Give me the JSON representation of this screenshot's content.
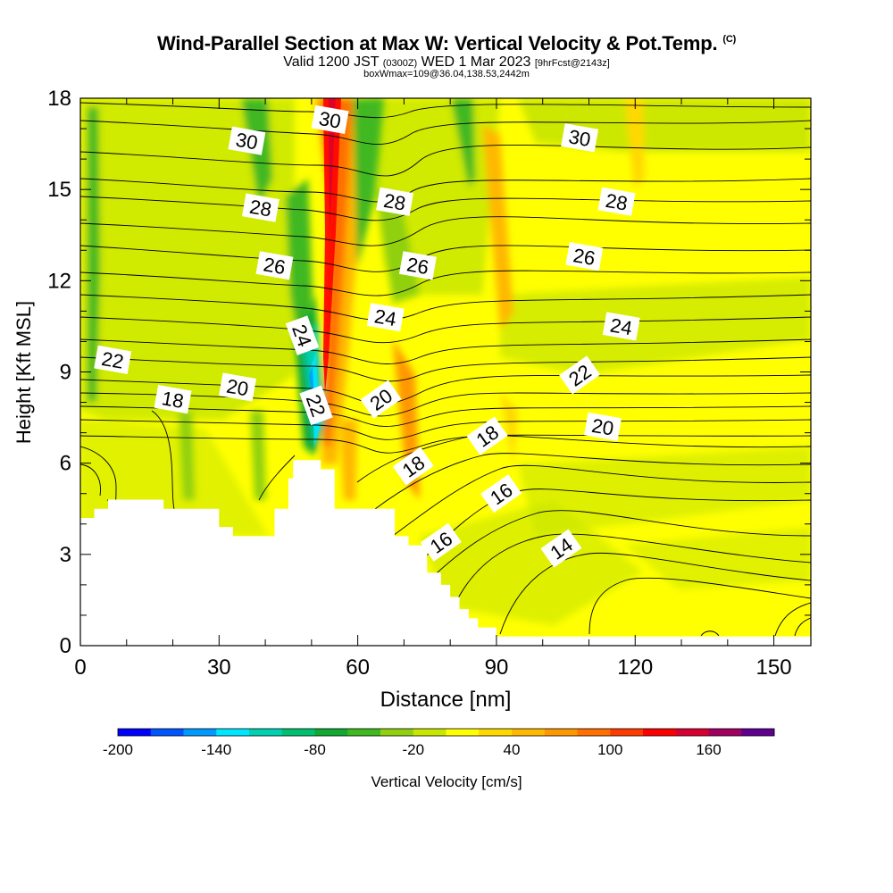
{
  "title": {
    "main": "Wind-Parallel Section at Max W: Vertical Velocity & Pot.Temp.",
    "copyright": "(C)",
    "line2_a": "Valid 1200 JST",
    "line2_b": "(0300Z)",
    "line2_c": "WED 1 Mar 2023",
    "line2_d": "[9hrFcst@2143z]",
    "line3": "boxWmax=109@36.04,138.53,2442m"
  },
  "chart_data": {
    "type": "heatmap",
    "xlabel": "Distance [nm]",
    "ylabel": "Height [Kft MSL]",
    "xlim": [
      0,
      158
    ],
    "ylim": [
      0,
      18
    ],
    "x_ticks": [
      0,
      30,
      60,
      90,
      120,
      150
    ],
    "y_ticks": [
      0,
      3,
      6,
      9,
      12,
      15,
      18
    ],
    "colorbar": {
      "label": "Vertical Velocity [cm/s]",
      "tick_labels": [
        "-200",
        "-140",
        "-80",
        "-20",
        "40",
        "100",
        "160"
      ],
      "tick_values": [
        -200,
        -140,
        -80,
        -20,
        40,
        100,
        160
      ],
      "colors": [
        "#0000ff",
        "#0055ff",
        "#0099ff",
        "#00e6ff",
        "#00d0b0",
        "#00c070",
        "#10a830",
        "#40b820",
        "#90d010",
        "#c8e600",
        "#ffff00",
        "#ffd800",
        "#ffb800",
        "#ff9800",
        "#ff7000",
        "#ff3c00",
        "#ff0000",
        "#d80030",
        "#a00060",
        "#600090"
      ]
    },
    "contour_field": "Pot.Temp.",
    "contour_labels": [
      {
        "label": "30",
        "x": 36,
        "y": 16.6
      },
      {
        "label": "30",
        "x": 54,
        "y": 17.3
      },
      {
        "label": "30",
        "x": 108,
        "y": 16.7
      },
      {
        "label": "28",
        "x": 39,
        "y": 14.4
      },
      {
        "label": "28",
        "x": 68,
        "y": 14.6
      },
      {
        "label": "28",
        "x": 116,
        "y": 14.6
      },
      {
        "label": "26",
        "x": 42,
        "y": 12.5
      },
      {
        "label": "26",
        "x": 73,
        "y": 12.5
      },
      {
        "label": "26",
        "x": 109,
        "y": 12.8
      },
      {
        "label": "24",
        "x": 48,
        "y": 10.2
      },
      {
        "label": "24",
        "x": 66,
        "y": 10.8
      },
      {
        "label": "24",
        "x": 117,
        "y": 10.5
      },
      {
        "label": "22",
        "x": 7,
        "y": 9.4
      },
      {
        "label": "22",
        "x": 51,
        "y": 7.9
      },
      {
        "label": "22",
        "x": 108,
        "y": 8.9
      },
      {
        "label": "20",
        "x": 34,
        "y": 8.5
      },
      {
        "label": "20",
        "x": 65,
        "y": 8.1
      },
      {
        "label": "20",
        "x": 113,
        "y": 7.2
      },
      {
        "label": "18",
        "x": 20,
        "y": 8.1
      },
      {
        "label": "18",
        "x": 72,
        "y": 5.9
      },
      {
        "label": "18",
        "x": 88,
        "y": 6.9
      },
      {
        "label": "16",
        "x": 78,
        "y": 3.4
      },
      {
        "label": "16",
        "x": 91,
        "y": 5.0
      },
      {
        "label": "14",
        "x": 104,
        "y": 3.2
      }
    ],
    "terrain_profile": [
      [
        0,
        4.2
      ],
      [
        3,
        4.2
      ],
      [
        3,
        4.5
      ],
      [
        6,
        4.5
      ],
      [
        6,
        4.8
      ],
      [
        18,
        4.8
      ],
      [
        18,
        4.5
      ],
      [
        30,
        4.5
      ],
      [
        30,
        3.9
      ],
      [
        33,
        3.9
      ],
      [
        33,
        3.6
      ],
      [
        42,
        3.6
      ],
      [
        42,
        4.5
      ],
      [
        45,
        4.5
      ],
      [
        45,
        5.5
      ],
      [
        46,
        5.5
      ],
      [
        46,
        6.1
      ],
      [
        52,
        6.1
      ],
      [
        52,
        5.8
      ],
      [
        55,
        5.8
      ],
      [
        55,
        4.5
      ],
      [
        68,
        4.5
      ],
      [
        68,
        3.6
      ],
      [
        71,
        3.6
      ],
      [
        71,
        3.3
      ],
      [
        75,
        3.3
      ],
      [
        75,
        2.4
      ],
      [
        78,
        2.4
      ],
      [
        78,
        2.0
      ],
      [
        80,
        2.0
      ],
      [
        80,
        1.6
      ],
      [
        82,
        1.6
      ],
      [
        82,
        1.2
      ],
      [
        84,
        1.2
      ],
      [
        84,
        0.9
      ],
      [
        86,
        0.9
      ],
      [
        86,
        0.6
      ],
      [
        90,
        0.6
      ],
      [
        90,
        0.3
      ],
      [
        92,
        0.3
      ],
      [
        92,
        0.3
      ],
      [
        158,
        0.3
      ]
    ]
  }
}
